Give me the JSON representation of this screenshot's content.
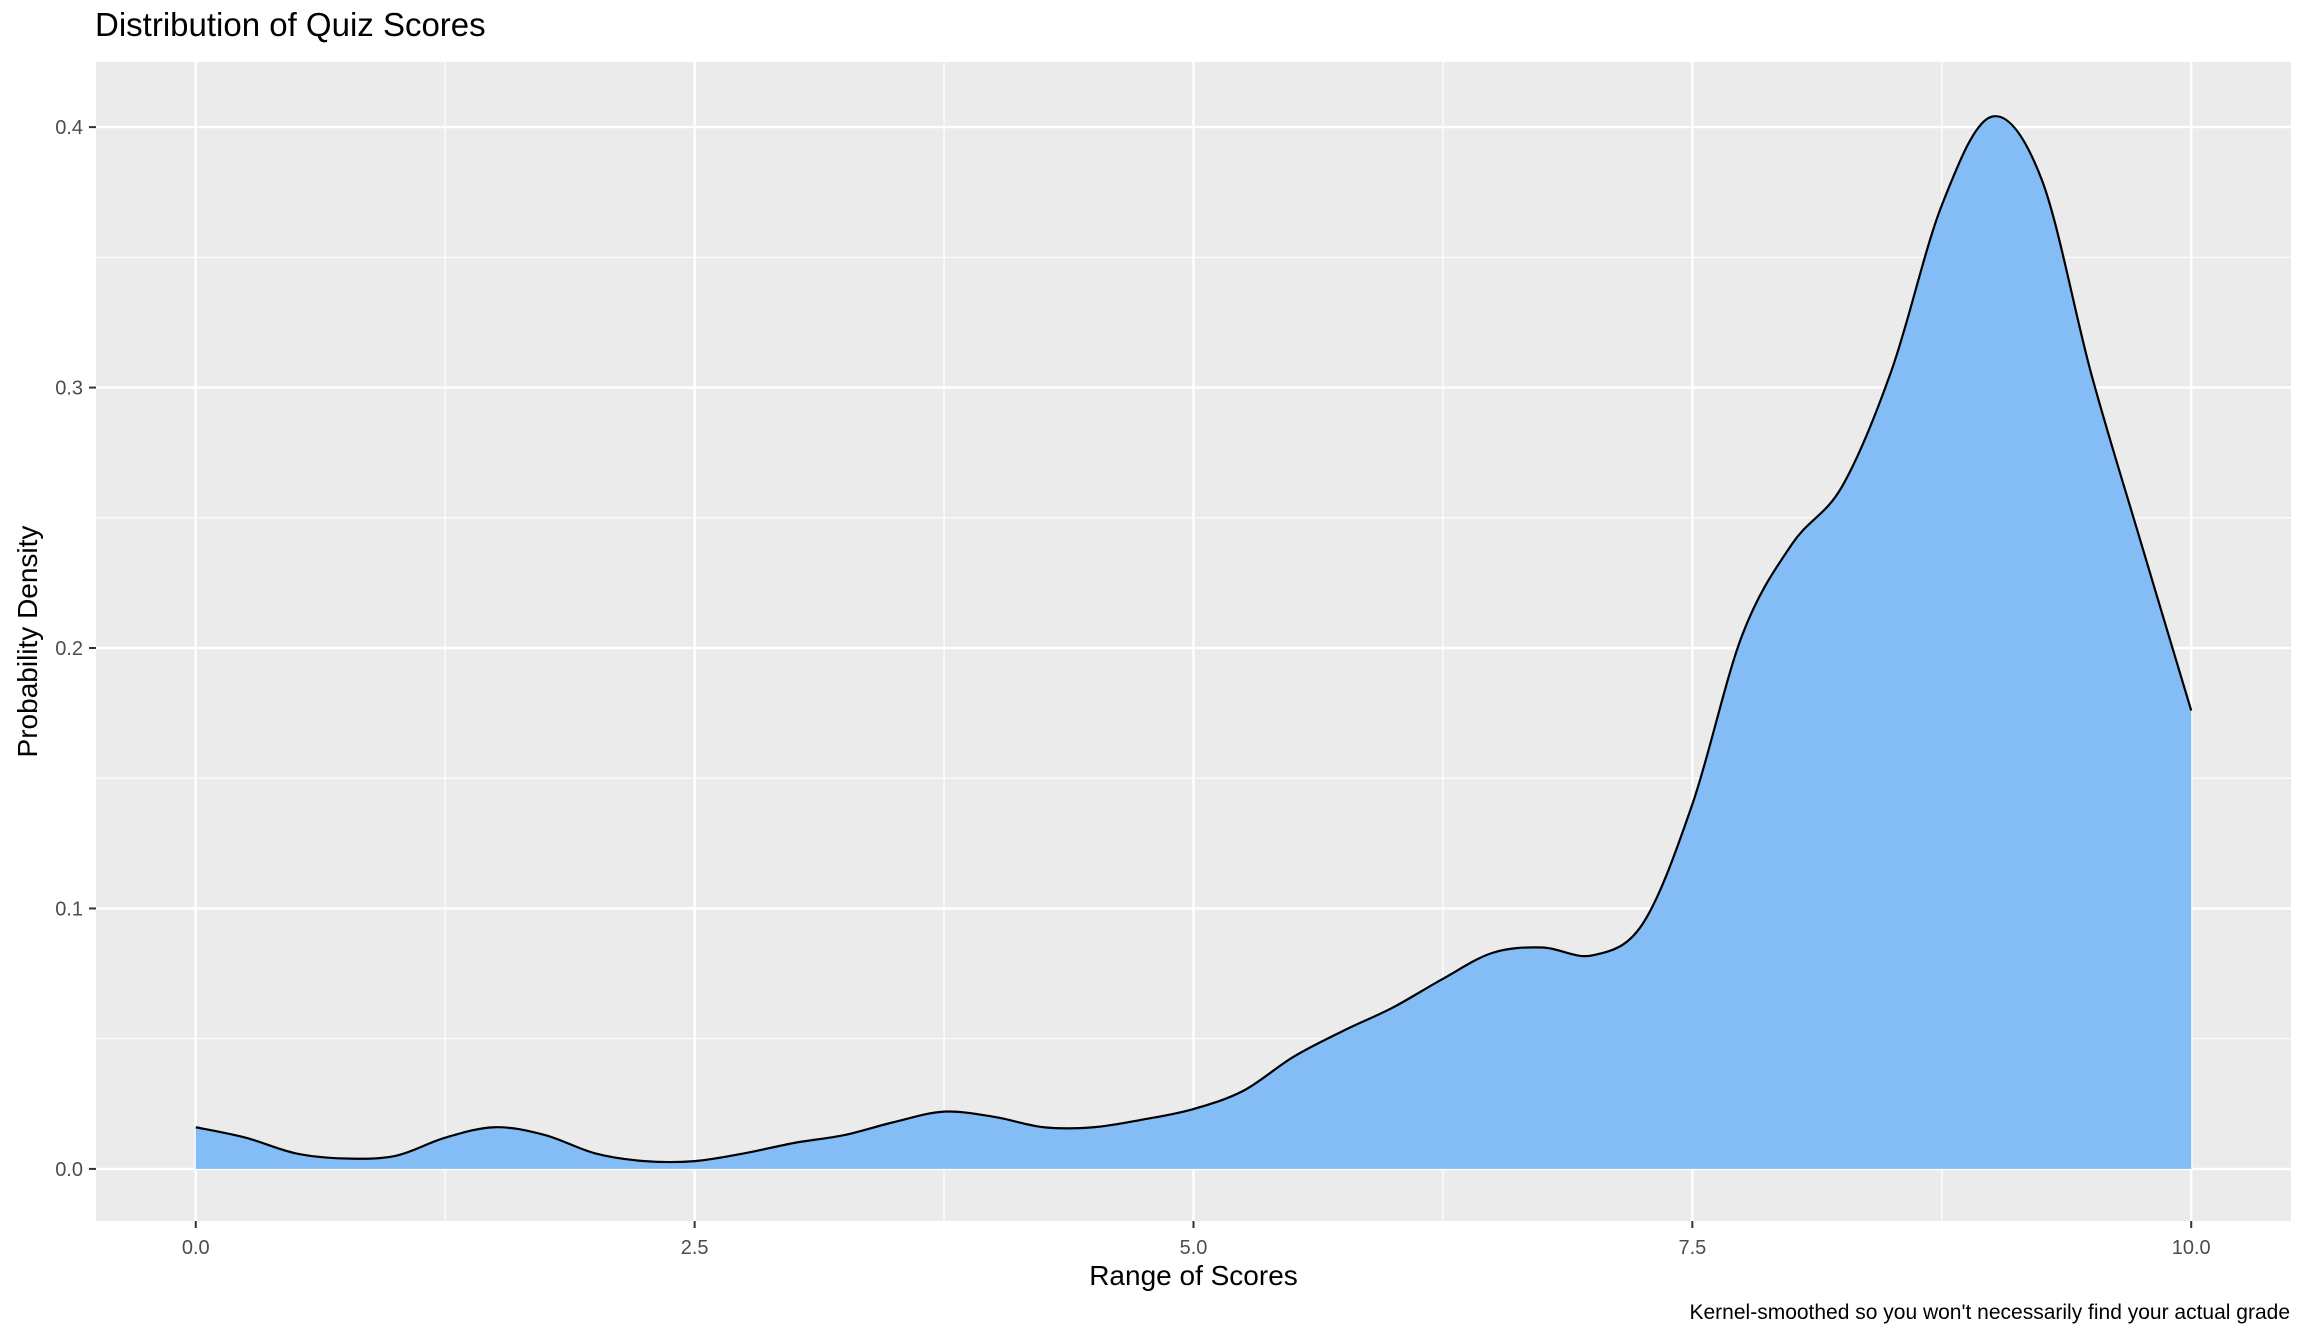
{
  "chart_data": {
    "type": "area",
    "title": "Distribution of Quiz Scores",
    "xlabel": "Range of Scores",
    "ylabel": "Probability Density",
    "caption": "Kernel-smoothed so you won't necessarily find your actual grade",
    "xlim": [
      -0.5,
      10.5
    ],
    "ylim": [
      -0.02,
      0.425
    ],
    "x_ticks": [
      0,
      2.5,
      5,
      7.5,
      10
    ],
    "x_tick_labels": [
      "0.0",
      "2.5",
      "5.0",
      "7.5",
      "10.0"
    ],
    "y_ticks": [
      0,
      0.1,
      0.2,
      0.3,
      0.4
    ],
    "y_tick_labels": [
      "0.0",
      "0.1",
      "0.2",
      "0.3",
      "0.4"
    ],
    "grid": true,
    "fill_color": "#84bcf5",
    "line_color": "#000000",
    "panel_color": "#ebebeb",
    "x": [
      0.0,
      0.25,
      0.5,
      0.75,
      1.0,
      1.25,
      1.5,
      1.75,
      2.0,
      2.25,
      2.5,
      2.75,
      3.0,
      3.25,
      3.5,
      3.75,
      4.0,
      4.25,
      4.5,
      4.75,
      5.0,
      5.25,
      5.5,
      5.75,
      6.0,
      6.25,
      6.5,
      6.75,
      7.0,
      7.25,
      7.5,
      7.75,
      8.0,
      8.25,
      8.5,
      8.75,
      9.0,
      9.25,
      9.5,
      9.75,
      10.0
    ],
    "y": [
      0.016,
      0.012,
      0.006,
      0.004,
      0.005,
      0.012,
      0.016,
      0.013,
      0.006,
      0.003,
      0.003,
      0.006,
      0.01,
      0.013,
      0.018,
      0.022,
      0.02,
      0.016,
      0.016,
      0.019,
      0.023,
      0.03,
      0.043,
      0.053,
      0.062,
      0.073,
      0.083,
      0.085,
      0.082,
      0.094,
      0.14,
      0.205,
      0.24,
      0.262,
      0.307,
      0.37,
      0.404,
      0.38,
      0.305,
      0.24,
      0.176
    ]
  }
}
